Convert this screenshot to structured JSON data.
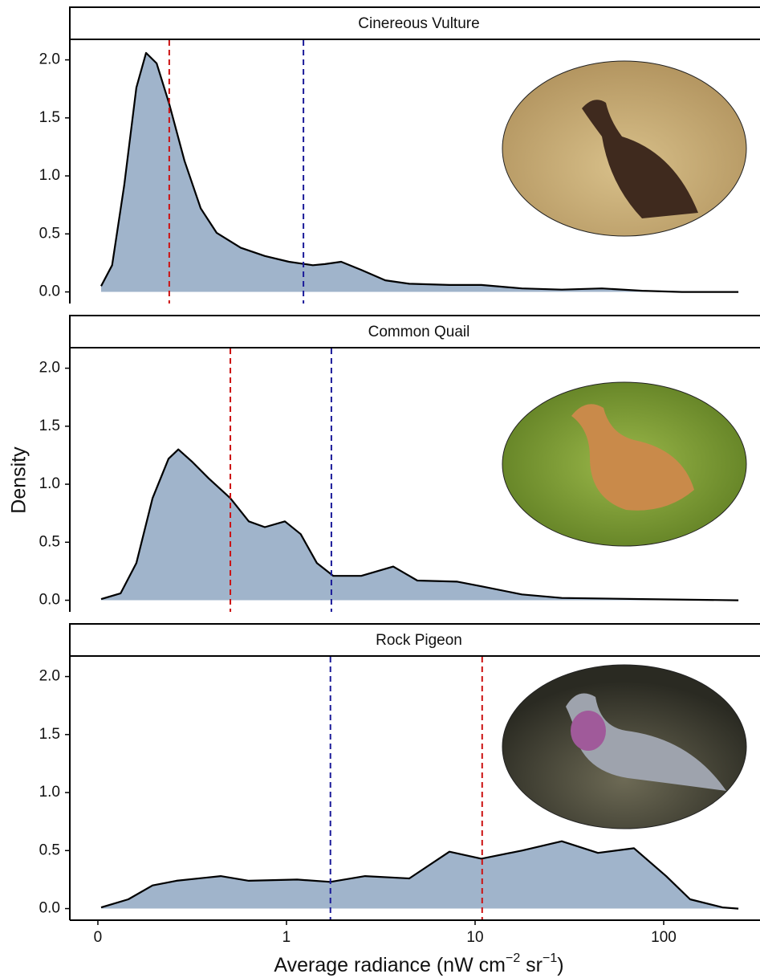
{
  "chart_data": [
    {
      "type": "density",
      "title": "Cinereous Vulture",
      "color": "#a0b4cb",
      "line_color": "#000000",
      "xscale": "log",
      "xlim": [
        0.071,
        324
      ],
      "ylim": [
        -0.1,
        2.17
      ],
      "yticks": [
        {
          "value": 0,
          "label": "0.0"
        },
        0.5,
        {
          "value": 1,
          "label": "1.0"
        },
        1.5,
        {
          "value": 2,
          "label": "2.0"
        }
      ],
      "x": [
        0.104,
        0.119,
        0.138,
        0.16,
        0.18,
        0.205,
        0.239,
        0.288,
        0.351,
        0.426,
        0.572,
        0.768,
        1.03,
        1.38,
        1.6,
        1.95,
        2.49,
        3.34,
        4.48,
        7.31,
        10.8,
        17.7,
        28.8,
        47.0,
        76.8,
        125,
        249
      ],
      "values": [
        0.05,
        0.23,
        0.92,
        1.76,
        2.06,
        1.97,
        1.62,
        1.13,
        0.72,
        0.51,
        0.38,
        0.31,
        0.26,
        0.23,
        0.24,
        0.26,
        0.19,
        0.1,
        0.07,
        0.06,
        0.06,
        0.03,
        0.02,
        0.03,
        0.01,
        0,
        0
      ],
      "vlines": [
        {
          "value": 0.239,
          "color": "#cc1111"
        },
        {
          "value": 1.23,
          "color": "#1a1a99"
        }
      ]
    },
    {
      "type": "density",
      "title": "Common Quail",
      "color": "#a0b4cb",
      "line_color": "#000000",
      "xscale": "log",
      "ylabel": "Density",
      "xlim": [
        0.071,
        324
      ],
      "ylim": [
        -0.1,
        2.17
      ],
      "yticks": [
        {
          "value": 0,
          "label": "0.0"
        },
        0.5,
        {
          "value": 1,
          "label": "1.0"
        },
        1.5,
        {
          "value": 2,
          "label": "2.0"
        }
      ],
      "x": [
        0.104,
        0.132,
        0.16,
        0.195,
        0.237,
        0.267,
        0.318,
        0.387,
        0.504,
        0.631,
        0.768,
        0.981,
        1.19,
        1.45,
        1.77,
        2.49,
        3.68,
        4.94,
        8.05,
        10.8,
        17.7,
        28.8,
        76.8,
        249
      ],
      "values": [
        0.01,
        0.06,
        0.32,
        0.88,
        1.22,
        1.3,
        1.19,
        1.05,
        0.88,
        0.68,
        0.63,
        0.68,
        0.57,
        0.32,
        0.21,
        0.21,
        0.29,
        0.17,
        0.16,
        0.12,
        0.05,
        0.02,
        0.01,
        0
      ],
      "vlines": [
        {
          "value": 0.504,
          "color": "#cc1111"
        },
        {
          "value": 1.73,
          "color": "#1a1a99"
        }
      ]
    },
    {
      "type": "density",
      "title": "Rock Pigeon",
      "color": "#a0b4cb",
      "line_color": "#000000",
      "xscale": "log",
      "xlim": [
        0.071,
        324
      ],
      "ylim": [
        -0.1,
        2.17
      ],
      "yticks": [
        {
          "value": 0,
          "label": "0.0"
        },
        0.5,
        {
          "value": 1,
          "label": "1.0"
        },
        1.5,
        {
          "value": 2,
          "label": "2.0"
        }
      ],
      "xticks": [
        {
          "value": 0.1,
          "label": "0"
        },
        1,
        10,
        100
      ],
      "xlabel": [
        "Average radiance (nW cm",
        "−2",
        " sr",
        "−1",
        ")"
      ],
      "x": [
        0.104,
        0.145,
        0.195,
        0.261,
        0.448,
        0.631,
        1.14,
        1.71,
        2.61,
        4.48,
        7.31,
        10.8,
        17.7,
        28.8,
        44.8,
        69.6,
        103,
        138,
        205,
        249
      ],
      "values": [
        0.01,
        0.08,
        0.2,
        0.24,
        0.28,
        0.24,
        0.25,
        0.23,
        0.28,
        0.26,
        0.49,
        0.43,
        0.5,
        0.58,
        0.48,
        0.52,
        0.28,
        0.08,
        0.01,
        0
      ],
      "vlines": [
        {
          "value": 1.71,
          "color": "#1a1a99"
        },
        {
          "value": 10.9,
          "color": "#cc1111"
        }
      ]
    }
  ]
}
